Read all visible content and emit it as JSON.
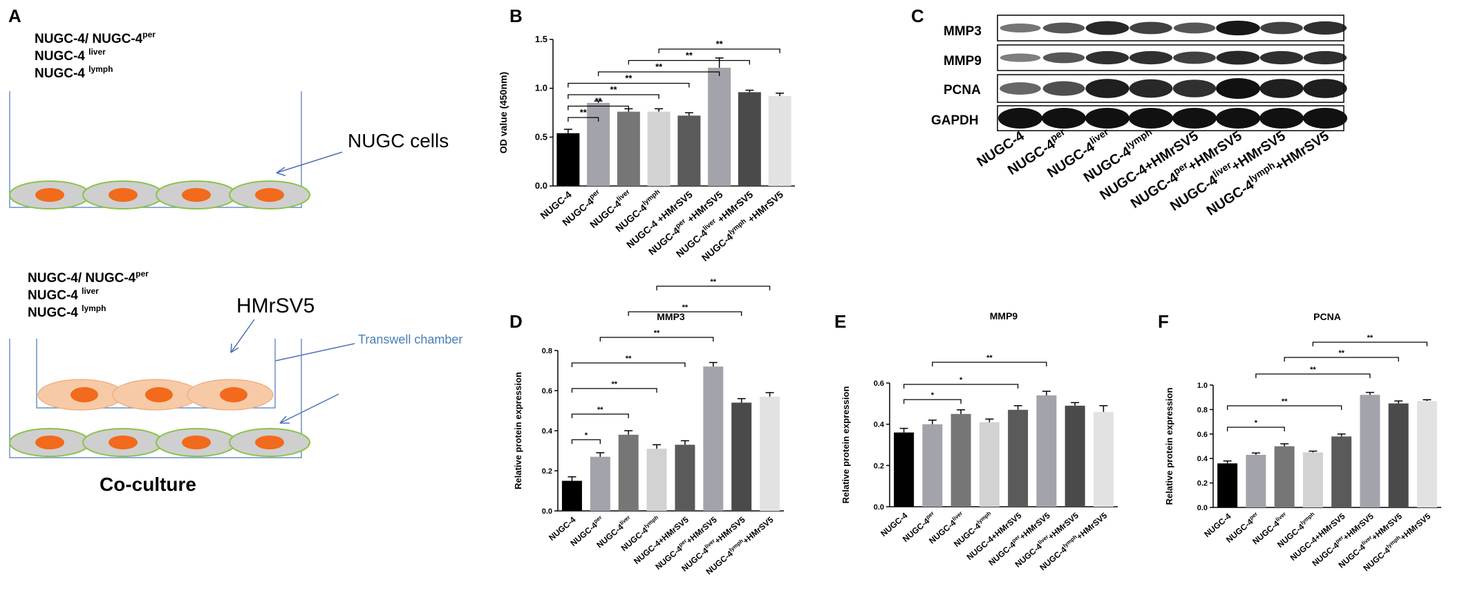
{
  "panel_a": {
    "label": "A",
    "top_lines": [
      {
        "base": "NUGC-4/ NUGC-4",
        "sup": "per"
      },
      {
        "base": "NUGC-4 ",
        "sup": "liver"
      },
      {
        "base": "NUGC-4 ",
        "sup": "lymph"
      }
    ],
    "nugc_cells": "NUGC cells",
    "bottom_lines": [
      {
        "base": "NUGC-4/ NUGC-4",
        "sup": "per"
      },
      {
        "base": "NUGC-4 ",
        "sup": "liver"
      },
      {
        "base": "NUGC-4 ",
        "sup": "lymph"
      }
    ],
    "hmrsv5": "HMrSV5",
    "transwell": "Transwell chamber",
    "coculture": "Co-culture",
    "colors": {
      "cell_fill": "#cfcfcf",
      "cell_stroke": "#8bc34a",
      "nucleus": "#f26a1b",
      "hmr_fill": "#f6caa6",
      "arrow": "#4a6fb5",
      "transwell_text": "#4a7fb5"
    }
  },
  "panel_c": {
    "label": "C",
    "rows": [
      "MMP3",
      "MMP9",
      "PCNA",
      "GAPDH"
    ],
    "lanes": [
      {
        "base": "NUGC-4",
        "sup": "",
        "tail": ""
      },
      {
        "base": "NUGC-4",
        "sup": "per",
        "tail": ""
      },
      {
        "base": "NUGC-4",
        "sup": "liver",
        "tail": ""
      },
      {
        "base": "NUGC-4",
        "sup": "lymph",
        "tail": ""
      },
      {
        "base": "NUGC-4+HMrSV5",
        "sup": "",
        "tail": ""
      },
      {
        "base": "NUGC-4",
        "sup": "per",
        "tail": "+HMrSV5"
      },
      {
        "base": "NUGC-4",
        "sup": "liver",
        "tail": "+HMrSV5"
      },
      {
        "base": "NUGC-4",
        "sup": "lymph",
        "tail": "+HMrSV5"
      }
    ]
  },
  "chart_data": [
    {
      "panel": "B",
      "type": "bar",
      "title": "",
      "ylabel": "OD value (450nm)",
      "ylim": [
        0,
        1.5
      ],
      "yticks": [
        "0.0",
        "0.5",
        "1.0",
        "1.5"
      ],
      "categories": [
        {
          "base": "NUGC-4",
          "sup": "",
          "tail": ""
        },
        {
          "base": "NUGC-4",
          "sup": "per",
          "tail": ""
        },
        {
          "base": "NUGC-4",
          "sup": "liver",
          "tail": ""
        },
        {
          "base": "NUGC-4",
          "sup": "lymph",
          "tail": ""
        },
        {
          "base": "NUGC-4 +HMrSV5",
          "sup": "",
          "tail": ""
        },
        {
          "base": "NUGC-4",
          "sup": "per",
          "tail": " +HMrSV5"
        },
        {
          "base": "NUGC-4",
          "sup": "liver",
          "tail": " +HMrSV5"
        },
        {
          "base": "NUGC-4",
          "sup": "lymph",
          "tail": " +HMrSV5"
        }
      ],
      "values": [
        0.54,
        0.85,
        0.76,
        0.76,
        0.72,
        1.21,
        0.96,
        0.92
      ],
      "errors": [
        0.04,
        0.02,
        0.03,
        0.03,
        0.03,
        0.1,
        0.02,
        0.03
      ],
      "colors": [
        "#000000",
        "#a3a3ab",
        "#767676",
        "#d2d2d2",
        "#5a5a5a",
        "#a3a3ab",
        "#4a4a4a",
        "#e2e2e2"
      ],
      "significance": [
        {
          "from": 0,
          "to": 1,
          "label": "**"
        },
        {
          "from": 0,
          "to": 2,
          "label": "**"
        },
        {
          "from": 0,
          "to": 3,
          "label": "**"
        },
        {
          "from": 0,
          "to": 4,
          "label": "**"
        },
        {
          "from": 1,
          "to": 5,
          "label": "**"
        },
        {
          "from": 2,
          "to": 6,
          "label": "**"
        },
        {
          "from": 3,
          "to": 7,
          "label": "**"
        }
      ]
    },
    {
      "panel": "D",
      "type": "bar",
      "title": "MMP3",
      "ylabel": "Relative protein expression",
      "ylim": [
        0,
        0.8
      ],
      "yticks": [
        "0.0",
        "0.2",
        "0.4",
        "0.6",
        "0.8"
      ],
      "categories": [
        {
          "base": "NUGC-4",
          "sup": "",
          "tail": ""
        },
        {
          "base": "NUGC-4",
          "sup": "per",
          "tail": ""
        },
        {
          "base": "NUGC-4",
          "sup": "liver",
          "tail": ""
        },
        {
          "base": "NUGC-4",
          "sup": "lymph",
          "tail": ""
        },
        {
          "base": "NUGC-4+HMrSV5",
          "sup": "",
          "tail": ""
        },
        {
          "base": "NUGC-4",
          "sup": "per",
          "tail": "+HMrSV5"
        },
        {
          "base": "NUGC-4",
          "sup": "liver",
          "tail": "+HMrSV5"
        },
        {
          "base": "NUGC-4",
          "sup": "lymph",
          "tail": "+HMrSV5"
        }
      ],
      "values": [
        0.15,
        0.27,
        0.38,
        0.31,
        0.33,
        0.72,
        0.54,
        0.57
      ],
      "errors": [
        0.02,
        0.02,
        0.02,
        0.02,
        0.02,
        0.02,
        0.02,
        0.02
      ],
      "colors": [
        "#000000",
        "#a3a3ab",
        "#767676",
        "#d2d2d2",
        "#5a5a5a",
        "#a3a3ab",
        "#4a4a4a",
        "#e2e2e2"
      ],
      "significance": [
        {
          "from": 0,
          "to": 1,
          "label": "*"
        },
        {
          "from": 0,
          "to": 2,
          "label": "**"
        },
        {
          "from": 0,
          "to": 3,
          "label": "**"
        },
        {
          "from": 0,
          "to": 4,
          "label": "**"
        },
        {
          "from": 1,
          "to": 5,
          "label": "**"
        },
        {
          "from": 2,
          "to": 6,
          "label": "**"
        },
        {
          "from": 3,
          "to": 7,
          "label": "**"
        }
      ]
    },
    {
      "panel": "E",
      "type": "bar",
      "title": "MMP9",
      "ylabel": "Relative protein expression",
      "ylim": [
        0,
        0.6
      ],
      "yticks": [
        "0.0",
        "0.2",
        "0.4",
        "0.6"
      ],
      "categories": [
        {
          "base": "NUGC-4",
          "sup": "",
          "tail": ""
        },
        {
          "base": "NUGC-4",
          "sup": "per",
          "tail": ""
        },
        {
          "base": "NUGC-4",
          "sup": "liver",
          "tail": ""
        },
        {
          "base": "NUGC-4",
          "sup": "lymph",
          "tail": ""
        },
        {
          "base": "NUGC-4+HMrSV5",
          "sup": "",
          "tail": ""
        },
        {
          "base": "NUGC-4",
          "sup": "per",
          "tail": "+HMrSV5"
        },
        {
          "base": "NUGC-4",
          "sup": "liver",
          "tail": "+HMrSV5"
        },
        {
          "base": "NUGC-4",
          "sup": "lymph",
          "tail": "+HMrSV5"
        }
      ],
      "values": [
        0.36,
        0.4,
        0.45,
        0.41,
        0.47,
        0.54,
        0.49,
        0.46
      ],
      "errors": [
        0.02,
        0.02,
        0.02,
        0.015,
        0.02,
        0.02,
        0.015,
        0.03
      ],
      "colors": [
        "#000000",
        "#a3a3ab",
        "#767676",
        "#d2d2d2",
        "#5a5a5a",
        "#a3a3ab",
        "#4a4a4a",
        "#e2e2e2"
      ],
      "significance": [
        {
          "from": 0,
          "to": 2,
          "label": "*"
        },
        {
          "from": 0,
          "to": 4,
          "label": "*"
        },
        {
          "from": 1,
          "to": 5,
          "label": "**"
        }
      ]
    },
    {
      "panel": "F",
      "type": "bar",
      "title": "PCNA",
      "ylabel": "Relative protein expression",
      "ylim": [
        0,
        1.0
      ],
      "yticks": [
        "0.0",
        "0.2",
        "0.4",
        "0.6",
        "0.8",
        "1.0"
      ],
      "categories": [
        {
          "base": "NUGC-4",
          "sup": "",
          "tail": ""
        },
        {
          "base": "NUGC-4",
          "sup": "per",
          "tail": ""
        },
        {
          "base": "NUGC-4",
          "sup": "liver",
          "tail": ""
        },
        {
          "base": "NUGC-4",
          "sup": "lymph",
          "tail": ""
        },
        {
          "base": "NUGC-4+HMrSV5",
          "sup": "",
          "tail": ""
        },
        {
          "base": "NUGC-4",
          "sup": "per",
          "tail": "+HMrSV5"
        },
        {
          "base": "NUGC-4",
          "sup": "liver",
          "tail": "+HMrSV5"
        },
        {
          "base": "NUGC-4",
          "sup": "lymph",
          "tail": "+HMrSV5"
        }
      ],
      "values": [
        0.36,
        0.43,
        0.5,
        0.45,
        0.58,
        0.92,
        0.85,
        0.87
      ],
      "errors": [
        0.02,
        0.015,
        0.02,
        0.01,
        0.02,
        0.02,
        0.02,
        0.01
      ],
      "colors": [
        "#000000",
        "#a3a3ab",
        "#767676",
        "#d2d2d2",
        "#5a5a5a",
        "#a3a3ab",
        "#4a4a4a",
        "#e2e2e2"
      ],
      "significance": [
        {
          "from": 0,
          "to": 2,
          "label": "*"
        },
        {
          "from": 0,
          "to": 4,
          "label": "**"
        },
        {
          "from": 1,
          "to": 5,
          "label": "**"
        },
        {
          "from": 2,
          "to": 6,
          "label": "**"
        },
        {
          "from": 3,
          "to": 7,
          "label": "**"
        }
      ]
    }
  ]
}
